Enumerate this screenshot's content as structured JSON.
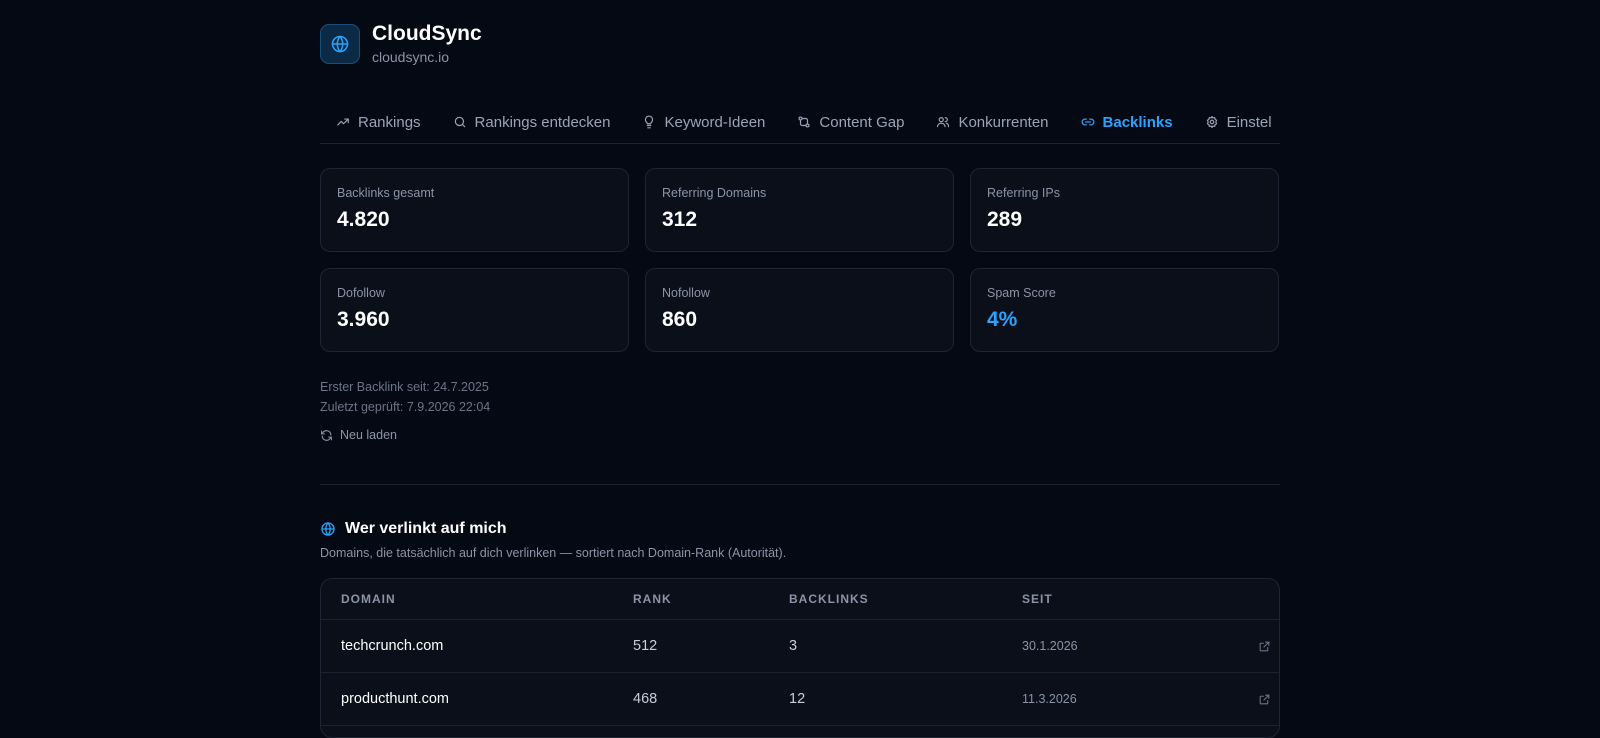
{
  "project": {
    "name": "CloudSync",
    "domain": "cloudsync.io"
  },
  "tabs": [
    {
      "label": "Rankings",
      "icon": "trending-up-icon"
    },
    {
      "label": "Rankings entdecken",
      "icon": "search-icon"
    },
    {
      "label": "Keyword-Ideen",
      "icon": "lightbulb-icon"
    },
    {
      "label": "Content Gap",
      "icon": "compare-icon"
    },
    {
      "label": "Konkurrenten",
      "icon": "users-icon"
    },
    {
      "label": "Backlinks",
      "icon": "link-icon",
      "active": true
    },
    {
      "label": "Einstel",
      "icon": "gear-icon"
    }
  ],
  "stats": [
    {
      "label": "Backlinks gesamt",
      "value": "4.820"
    },
    {
      "label": "Referring Domains",
      "value": "312"
    },
    {
      "label": "Referring IPs",
      "value": "289"
    },
    {
      "label": "Dofollow",
      "value": "3.960"
    },
    {
      "label": "Nofollow",
      "value": "860"
    },
    {
      "label": "Spam Score",
      "value": "4%"
    }
  ],
  "meta": {
    "first_backlink": "Erster Backlink seit: 24.7.2025",
    "last_checked": "Zuletzt geprüft: 7.9.2026 22:04",
    "reload_label": "Neu laden"
  },
  "section": {
    "title": "Wer verlinkt auf mich",
    "subtitle": "Domains, die tatsächlich auf dich verlinken — sortiert nach Domain-Rank (Autorität)."
  },
  "table": {
    "headers": {
      "domain": "DOMAIN",
      "rank": "RANK",
      "backlinks": "BACKLINKS",
      "since": "SEIT"
    },
    "rows": [
      {
        "domain": "techcrunch.com",
        "rank": "512",
        "backlinks": "3",
        "since": "30.1.2026"
      },
      {
        "domain": "producthunt.com",
        "rank": "468",
        "backlinks": "12",
        "since": "11.3.2026"
      }
    ]
  },
  "colors": {
    "accent": "#2aa3ff",
    "background": "#050914",
    "card": "#0a0f1a",
    "border": "#1d2433"
  }
}
